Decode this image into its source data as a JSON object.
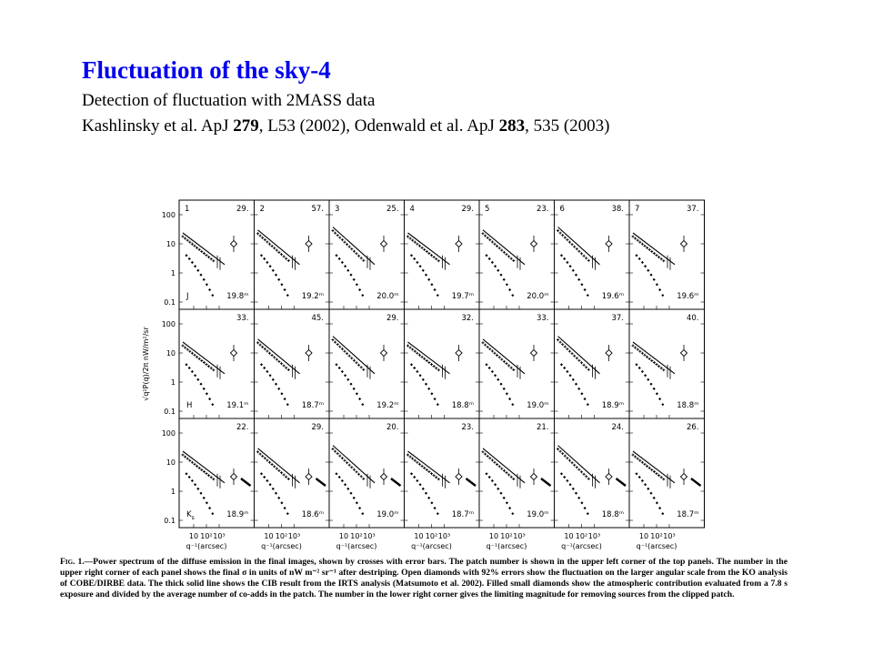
{
  "slide": {
    "title": "Fluctuation of the sky-4",
    "subtitle": "Detection of fluctuation with 2MASS data",
    "references": {
      "ref1_pre": "Kashlinsky et al. ApJ ",
      "ref1_vol": "279",
      "ref1_post": ", L53 (2002), Odenwald et al. ApJ ",
      "ref2_vol": "283",
      "ref2_post": ", 535 (2003)"
    }
  },
  "chart_data": {
    "type": "scatter",
    "y_axis_label": "√q²P(q)/2π   nW/m²/sr",
    "x_axis_label": "q⁻¹(arcsec)",
    "y_ticks": [
      "100",
      "10",
      "1",
      "0.1"
    ],
    "x_ticks": [
      "10",
      "10²",
      "10³"
    ],
    "ylim": [
      0.1,
      100
    ],
    "log_scale": true,
    "bands": [
      {
        "band": "J",
        "panels": [
          {
            "patch": "1",
            "sigma": "29.",
            "mag": "19.8ᵐ"
          },
          {
            "patch": "2",
            "sigma": "57.",
            "mag": "19.2ᵐ"
          },
          {
            "patch": "3",
            "sigma": "25.",
            "mag": "20.0ᵐ"
          },
          {
            "patch": "4",
            "sigma": "29.",
            "mag": "19.7ᵐ"
          },
          {
            "patch": "5",
            "sigma": "23.",
            "mag": "20.0ᵐ"
          },
          {
            "patch": "6",
            "sigma": "38.",
            "mag": "19.6ᵐ"
          },
          {
            "patch": "7",
            "sigma": "37.",
            "mag": "19.6ᵐ"
          }
        ]
      },
      {
        "band": "H",
        "panels": [
          {
            "patch": "",
            "sigma": "33.",
            "mag": "19.1ᵐ"
          },
          {
            "patch": "",
            "sigma": "45.",
            "mag": "18.7ᵐ"
          },
          {
            "patch": "",
            "sigma": "29.",
            "mag": "19.2ᵐ"
          },
          {
            "patch": "",
            "sigma": "32.",
            "mag": "18.8ᵐ"
          },
          {
            "patch": "",
            "sigma": "33.",
            "mag": "19.0ᵐ"
          },
          {
            "patch": "",
            "sigma": "37.",
            "mag": "18.9ᵐ"
          },
          {
            "patch": "",
            "sigma": "40.",
            "mag": "18.8ᵐ"
          }
        ]
      },
      {
        "band": "Ks",
        "panels": [
          {
            "patch": "",
            "sigma": "22.",
            "mag": "18.9ᵐ"
          },
          {
            "patch": "",
            "sigma": "29.",
            "mag": "18.6ᵐ"
          },
          {
            "patch": "",
            "sigma": "20.",
            "mag": "19.0ᵐ"
          },
          {
            "patch": "",
            "sigma": "23.",
            "mag": "18.7ᵐ"
          },
          {
            "patch": "",
            "sigma": "21.",
            "mag": "19.0ᵐ"
          },
          {
            "patch": "",
            "sigma": "24.",
            "mag": "18.8ᵐ"
          },
          {
            "patch": "",
            "sigma": "26.",
            "mag": "18.7ᵐ"
          }
        ]
      }
    ]
  },
  "caption": {
    "label": "Fig. 1.",
    "text": "—Power spectrum of the diffuse emission in the final images, shown by crosses with error bars. The patch number is shown in the upper left corner of the top panels. The number in the upper right corner of each panel shows the final σ in units of nW m⁻² sr⁻¹ after destriping. Open diamonds with 92% errors show the fluctuation on the larger angular scale from the KO analysis of COBE/DIRBE data. The thick solid line shows the CIB result from the IRTS analysis (Matsumoto et al. 2002). Filled small diamonds show the atmospheric contribution evaluated from a 7.8 s exposure and divided by the average number of co-adds in the patch. The number in the lower right corner gives the limiting magnitude for removing sources from the clipped patch."
  }
}
